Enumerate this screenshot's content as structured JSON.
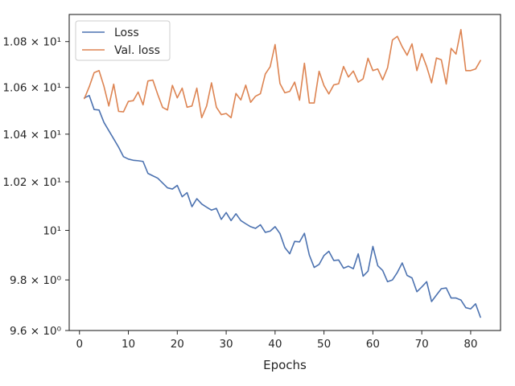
{
  "chart_data": {
    "type": "line",
    "title": "",
    "xlabel": "Epochs",
    "ylabel": "",
    "xlim": [
      -2.1,
      86.1
    ],
    "ylim": [
      9.6,
      10.92
    ],
    "y_scale": "log",
    "grid": false,
    "legend_position": "upper left",
    "x_ticks": [
      {
        "value": 0,
        "label": "0"
      },
      {
        "value": 10,
        "label": "10"
      },
      {
        "value": 20,
        "label": "20"
      },
      {
        "value": 30,
        "label": "30"
      },
      {
        "value": 40,
        "label": "40"
      },
      {
        "value": 50,
        "label": "50"
      },
      {
        "value": 60,
        "label": "60"
      },
      {
        "value": 70,
        "label": "70"
      },
      {
        "value": 80,
        "label": "80"
      }
    ],
    "y_ticks": [
      {
        "value": 9.6,
        "label": "9.6 × 10⁰"
      },
      {
        "value": 9.8,
        "label": "9.8 × 10⁰"
      },
      {
        "value": 10.0,
        "label": "10¹"
      },
      {
        "value": 10.2,
        "label": "1.02 × 10¹"
      },
      {
        "value": 10.4,
        "label": "1.04 × 10¹"
      },
      {
        "value": 10.6,
        "label": "1.06 × 10¹"
      },
      {
        "value": 10.8,
        "label": "1.08 × 10¹"
      }
    ],
    "x": [
      1,
      2,
      3,
      4,
      5,
      6,
      7,
      8,
      9,
      10,
      11,
      12,
      13,
      14,
      15,
      16,
      17,
      18,
      19,
      20,
      21,
      22,
      23,
      24,
      25,
      26,
      27,
      28,
      29,
      30,
      31,
      32,
      33,
      34,
      35,
      36,
      37,
      38,
      39,
      40,
      41,
      42,
      43,
      44,
      45,
      46,
      47,
      48,
      49,
      50,
      51,
      52,
      53,
      54,
      55,
      56,
      57,
      58,
      59,
      60,
      61,
      62,
      63,
      64,
      65,
      66,
      67,
      68,
      69,
      70,
      71,
      72,
      73,
      74,
      75,
      76,
      77,
      78,
      79,
      80,
      81,
      82
    ],
    "series": [
      {
        "name": "Loss",
        "color": "#4c72b0",
        "values": [
          10.555,
          10.565,
          10.505,
          10.503,
          10.45,
          10.415,
          10.38,
          10.345,
          10.305,
          10.295,
          10.29,
          10.288,
          10.285,
          10.235,
          10.225,
          10.215,
          10.195,
          10.175,
          10.17,
          10.185,
          10.138,
          10.155,
          10.097,
          10.13,
          10.108,
          10.095,
          10.083,
          10.09,
          10.045,
          10.073,
          10.04,
          10.068,
          10.04,
          10.027,
          10.015,
          10.008,
          10.023,
          9.992,
          9.997,
          10.015,
          9.987,
          9.93,
          9.905,
          9.955,
          9.953,
          9.988,
          9.9,
          9.85,
          9.862,
          9.898,
          9.915,
          9.878,
          9.88,
          9.847,
          9.855,
          9.845,
          9.905,
          9.815,
          9.835,
          9.935,
          9.857,
          9.838,
          9.793,
          9.8,
          9.83,
          9.868,
          9.818,
          9.808,
          9.753,
          9.772,
          9.793,
          9.714,
          9.74,
          9.765,
          9.768,
          9.728,
          9.728,
          9.72,
          9.69,
          9.685,
          9.705,
          9.652
        ]
      },
      {
        "name": "Val. loss",
        "color": "#dd8452",
        "values": [
          10.552,
          10.603,
          10.664,
          10.673,
          10.605,
          10.52,
          10.614,
          10.497,
          10.495,
          10.54,
          10.543,
          10.58,
          10.525,
          10.628,
          10.632,
          10.57,
          10.514,
          10.503,
          10.609,
          10.555,
          10.597,
          10.515,
          10.52,
          10.597,
          10.47,
          10.52,
          10.62,
          10.515,
          10.483,
          10.488,
          10.47,
          10.574,
          10.546,
          10.61,
          10.536,
          10.562,
          10.573,
          10.658,
          10.69,
          10.787,
          10.617,
          10.577,
          10.583,
          10.623,
          10.545,
          10.705,
          10.533,
          10.533,
          10.67,
          10.608,
          10.572,
          10.611,
          10.616,
          10.691,
          10.645,
          10.671,
          10.623,
          10.637,
          10.727,
          10.673,
          10.68,
          10.633,
          10.685,
          10.807,
          10.823,
          10.777,
          10.74,
          10.79,
          10.673,
          10.747,
          10.69,
          10.62,
          10.728,
          10.72,
          10.615,
          10.77,
          10.745,
          10.853,
          10.673,
          10.673,
          10.68,
          10.717
        ]
      }
    ]
  }
}
